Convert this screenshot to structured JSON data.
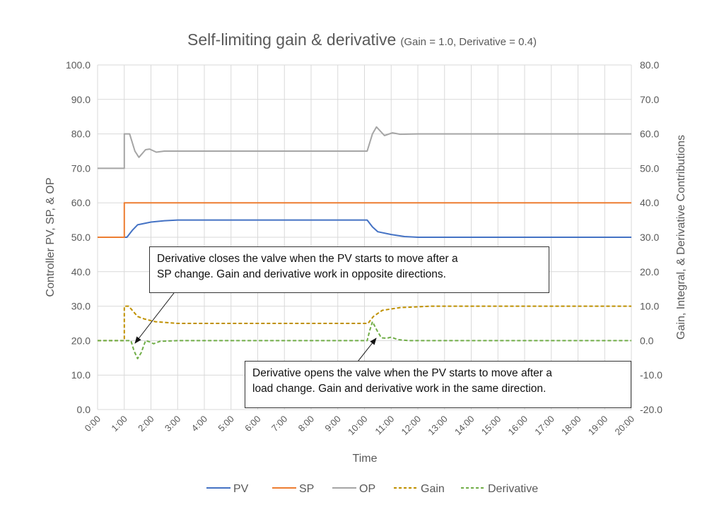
{
  "chart_data": {
    "type": "line",
    "title": "Self-limiting gain & derivative",
    "subtitle": "(Gain = 1.0, Derivative = 0.4)",
    "xlabel": "Time",
    "ylabel": "Controller PV, SP, & OP",
    "y2label": "Gain, Integral, & Derivative Contributions",
    "xlim": [
      "0:00",
      "20:00"
    ],
    "ylim": [
      0,
      100
    ],
    "y2lim": [
      -20,
      80
    ],
    "x_ticks": [
      "0:00",
      "1:00",
      "2:00",
      "3:00",
      "4:00",
      "5:00",
      "6:00",
      "7:00",
      "8:00",
      "9:00",
      "10:00",
      "11:00",
      "12:00",
      "13:00",
      "14:00",
      "15:00",
      "16:00",
      "17:00",
      "18:00",
      "19:00",
      "20:00"
    ],
    "y_ticks": [
      "0.0",
      "10.0",
      "20.0",
      "30.0",
      "40.0",
      "50.0",
      "60.0",
      "70.0",
      "80.0",
      "90.0",
      "100.0"
    ],
    "y2_ticks": [
      "-20.0",
      "-10.0",
      "0.0",
      "10.0",
      "20.0",
      "30.0",
      "40.0",
      "50.0",
      "60.0",
      "70.0",
      "80.0"
    ],
    "grid": true,
    "legend_position": "bottom",
    "series": [
      {
        "name": "PV",
        "axis": "left",
        "color": "#4472C4",
        "dash": "solid",
        "points": [
          [
            "0:00",
            50
          ],
          [
            "1:00",
            50
          ],
          [
            "1:06",
            50
          ],
          [
            "1:18",
            52
          ],
          [
            "1:30",
            53.6
          ],
          [
            "2:00",
            54.4
          ],
          [
            "2:30",
            54.8
          ],
          [
            "3:00",
            55
          ],
          [
            "10:06",
            55
          ],
          [
            "10:18",
            53
          ],
          [
            "10:30",
            51.6
          ],
          [
            "11:00",
            50.8
          ],
          [
            "11:30",
            50.2
          ],
          [
            "12:00",
            50
          ],
          [
            "20:00",
            50
          ]
        ]
      },
      {
        "name": "SP",
        "axis": "left",
        "color": "#ED7D31",
        "dash": "solid",
        "points": [
          [
            "0:00",
            50
          ],
          [
            "1:00",
            50
          ],
          [
            "1:00",
            60
          ],
          [
            "20:00",
            60
          ]
        ]
      },
      {
        "name": "OP",
        "axis": "left",
        "color": "#A5A5A5",
        "dash": "solid",
        "points": [
          [
            "0:00",
            70
          ],
          [
            "1:00",
            70
          ],
          [
            "1:00",
            80
          ],
          [
            "1:12",
            80
          ],
          [
            "1:24",
            75
          ],
          [
            "1:33",
            73.2
          ],
          [
            "1:48",
            75.4
          ],
          [
            "1:57",
            75.6
          ],
          [
            "2:12",
            74.7
          ],
          [
            "2:30",
            75
          ],
          [
            "3:00",
            75
          ],
          [
            "10:06",
            75
          ],
          [
            "10:18",
            80
          ],
          [
            "10:27",
            82
          ],
          [
            "10:45",
            79.5
          ],
          [
            "11:03",
            80.3
          ],
          [
            "11:20",
            79.9
          ],
          [
            "12:00",
            80
          ],
          [
            "20:00",
            80
          ]
        ]
      },
      {
        "name": "Gain",
        "axis": "right",
        "color": "#BF9000",
        "dash": "dashed",
        "points": [
          [
            "0:00",
            0
          ],
          [
            "1:00",
            0
          ],
          [
            "1:00",
            10
          ],
          [
            "1:10",
            10
          ],
          [
            "1:30",
            7
          ],
          [
            "1:45",
            6.3
          ],
          [
            "2:10",
            5.5
          ],
          [
            "3:00",
            5
          ],
          [
            "10:08",
            5
          ],
          [
            "10:20",
            7
          ],
          [
            "10:40",
            8.8
          ],
          [
            "11:20",
            9.6
          ],
          [
            "12:30",
            10
          ],
          [
            "20:00",
            10
          ]
        ]
      },
      {
        "name": "Derivative",
        "axis": "right",
        "color": "#70AD47",
        "dash": "dashed",
        "points": [
          [
            "0:00",
            0
          ],
          [
            "1:15",
            0
          ],
          [
            "1:22",
            -3
          ],
          [
            "1:30",
            -5.2
          ],
          [
            "1:38",
            -3.5
          ],
          [
            "1:48",
            0
          ],
          [
            "1:56",
            -0.3
          ],
          [
            "2:06",
            -0.9
          ],
          [
            "2:20",
            -0.2
          ],
          [
            "3:00",
            0
          ],
          [
            "10:06",
            0
          ],
          [
            "10:12",
            3
          ],
          [
            "10:18",
            5.5
          ],
          [
            "10:28",
            3
          ],
          [
            "10:38",
            0.8
          ],
          [
            "10:50",
            0.7
          ],
          [
            "11:00",
            1
          ],
          [
            "11:15",
            0.3
          ],
          [
            "11:40",
            0
          ],
          [
            "20:00",
            0
          ]
        ]
      }
    ],
    "annotations": [
      {
        "text_line1": "Derivative closes the valve when the PV starts to move after a",
        "text_line2": "SP change.  Gain and derivative work in opposite directions.",
        "points_to": [
          "1:20",
          0
        ]
      },
      {
        "text_line1": "Derivative opens the valve when the PV starts to move after a",
        "text_line2": "load change.  Gain and derivative work in the same direction.",
        "points_to": [
          "10:20",
          5
        ]
      }
    ]
  }
}
